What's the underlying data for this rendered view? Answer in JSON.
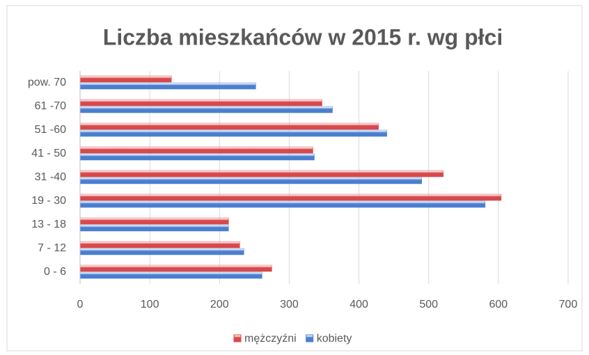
{
  "chart_data": {
    "type": "hbar",
    "title": "Liczba mieszkańców w 2015 r. wg płci",
    "categories": [
      "0 - 6",
      "7 - 12",
      "13 - 18",
      "19 - 30",
      "31 -40",
      "41 - 50",
      "51 -60",
      "61 -70",
      "pow. 70"
    ],
    "series": [
      {
        "name": "mężczyźni",
        "color": "#d9484a",
        "values": [
          275,
          229,
          213,
          604,
          521,
          334,
          428,
          347,
          131
        ]
      },
      {
        "name": "kobiety",
        "color": "#4a7fd0",
        "values": [
          261,
          235,
          213,
          581,
          490,
          336,
          440,
          362,
          252
        ]
      }
    ],
    "xlim": [
      0,
      700
    ],
    "xticks": [
      0,
      100,
      200,
      300,
      400,
      500,
      600,
      700
    ],
    "grid": true,
    "legend": "bottom"
  }
}
